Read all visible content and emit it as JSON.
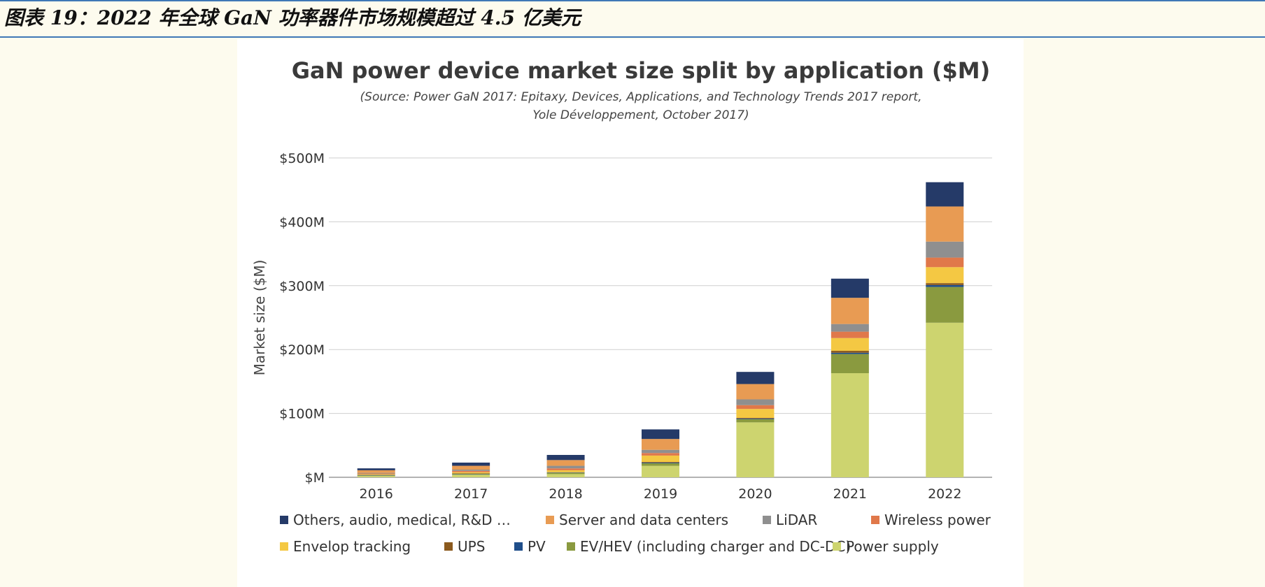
{
  "figure_caption": "图表 19：2022 年全球 GaN 功率器件市场规模超过 4.5 亿美元",
  "chart_data": {
    "type": "bar",
    "stacked": true,
    "title": "GaN power device market size split by application ($M)",
    "source_line1": "(Source: Power GaN 2017: Epitaxy, Devices, Applications, and Technology Trends 2017 report,",
    "source_line2": "Yole Développement, October 2017)",
    "xlabel": "",
    "ylabel": "Market size ($M)",
    "ylim": [
      0,
      500
    ],
    "yticks": [
      0,
      100,
      200,
      300,
      400,
      500
    ],
    "ytick_labels": [
      "$M",
      "$100M",
      "$200M",
      "$300M",
      "$400M",
      "$500M"
    ],
    "grid": true,
    "legend_position": "bottom",
    "categories": [
      "2016",
      "2017",
      "2018",
      "2019",
      "2020",
      "2021",
      "2022"
    ],
    "series": [
      {
        "name": "Power supply",
        "color": "#cdd46f",
        "values": [
          2,
          4,
          5,
          18,
          86,
          163,
          242
        ]
      },
      {
        "name": "EV/HEV (including charger and DC-DC)",
        "color": "#8a9a3f",
        "values": [
          1,
          1,
          2,
          4,
          5,
          30,
          56
        ]
      },
      {
        "name": "PV",
        "color": "#1f4e8a",
        "values": [
          0.5,
          0.5,
          0.5,
          1,
          1,
          2,
          3
        ]
      },
      {
        "name": "UPS",
        "color": "#8b5a1e",
        "values": [
          0.5,
          0.5,
          0.5,
          1,
          1,
          3,
          3
        ]
      },
      {
        "name": "Envelop tracking",
        "color": "#f4c843",
        "values": [
          1,
          2,
          3,
          10,
          14,
          20,
          25
        ]
      },
      {
        "name": "Wireless power",
        "color": "#e0784a",
        "values": [
          1,
          2,
          3,
          4,
          6,
          10,
          15
        ]
      },
      {
        "name": "LiDAR",
        "color": "#8f8f8f",
        "values": [
          1,
          2,
          4,
          5,
          9,
          12,
          25
        ]
      },
      {
        "name": "Server and data centers",
        "color": "#e89b53",
        "values": [
          4,
          6,
          9,
          17,
          24,
          41,
          55
        ]
      },
      {
        "name": "Others, audio, medical, R&D …",
        "color": "#253a68",
        "values": [
          3,
          5,
          8,
          15,
          19,
          30,
          38
        ]
      }
    ],
    "legend_order": [
      [
        "Others, audio, medical, R&D …",
        "Server and data centers",
        "LiDAR",
        "Wireless power"
      ],
      [
        "Envelop tracking",
        "UPS",
        "PV",
        "EV/HEV (including charger and DC-DC)",
        "Power supply"
      ]
    ]
  }
}
